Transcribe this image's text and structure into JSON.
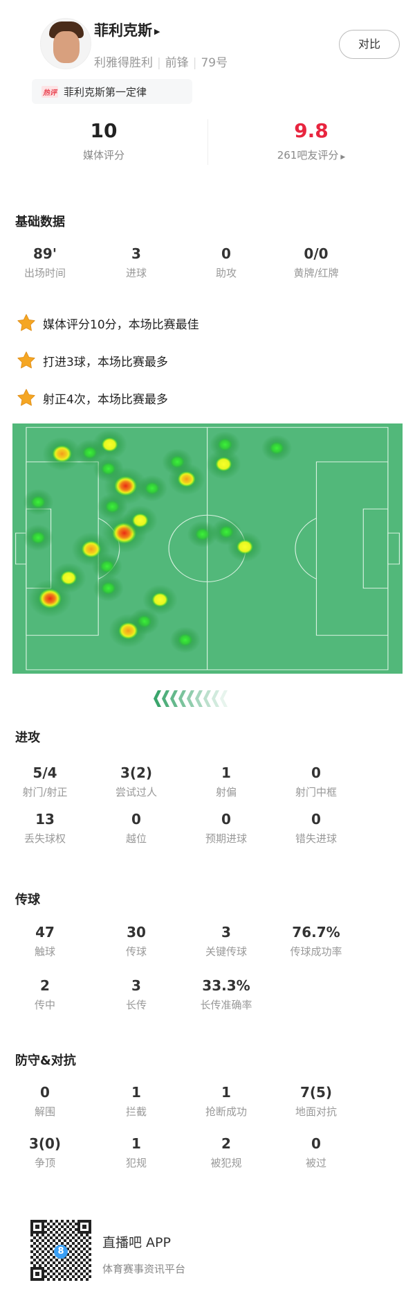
{
  "player": {
    "name": "菲利克斯",
    "team": "利雅得胜利",
    "position": "前锋",
    "number": "79号",
    "compare_label": "对比"
  },
  "hot_comment": {
    "tag": "热评",
    "text": "菲利克斯第一定律"
  },
  "ratings": {
    "media_score": "10",
    "media_label": "媒体评分",
    "fan_score": "9.8",
    "fan_label": "261吧友评分",
    "fan_score_color": "#e8253f"
  },
  "basic": {
    "title": "基础数据",
    "stats": [
      {
        "value": "89'",
        "label": "出场时间"
      },
      {
        "value": "3",
        "label": "进球"
      },
      {
        "value": "0",
        "label": "助攻"
      },
      {
        "value": "0/0",
        "label": "黄牌/红牌"
      }
    ]
  },
  "highlights": [
    "媒体评分10分，本场比赛最佳",
    "打进3球，本场比赛最多",
    "射正4次，本场比赛最多"
  ],
  "attack": {
    "title": "进攻",
    "stats": [
      {
        "value": "5/4",
        "label": "射门/射正"
      },
      {
        "value": "3(2)",
        "label": "尝试过人"
      },
      {
        "value": "1",
        "label": "射偏"
      },
      {
        "value": "0",
        "label": "射门中框"
      },
      {
        "value": "13",
        "label": "丢失球权"
      },
      {
        "value": "0",
        "label": "越位"
      },
      {
        "value": "0",
        "label": "预期进球"
      },
      {
        "value": "0",
        "label": "错失进球"
      }
    ]
  },
  "passing": {
    "title": "传球",
    "stats": [
      {
        "value": "47",
        "label": "触球"
      },
      {
        "value": "30",
        "label": "传球"
      },
      {
        "value": "3",
        "label": "关键传球"
      },
      {
        "value": "76.7%",
        "label": "传球成功率"
      },
      {
        "value": "2",
        "label": "传中"
      },
      {
        "value": "3",
        "label": "长传"
      },
      {
        "value": "33.3%",
        "label": "长传准确率"
      }
    ]
  },
  "defense": {
    "title": "防守&对抗",
    "stats": [
      {
        "value": "0",
        "label": "解围"
      },
      {
        "value": "1",
        "label": "拦截"
      },
      {
        "value": "1",
        "label": "抢断成功"
      },
      {
        "value": "7(5)",
        "label": "地面对抗"
      },
      {
        "value": "3(0)",
        "label": "争顶"
      },
      {
        "value": "1",
        "label": "犯规"
      },
      {
        "value": "2",
        "label": "被犯规"
      },
      {
        "value": "0",
        "label": "被过"
      }
    ]
  },
  "footer": {
    "app_name": "直播吧 APP",
    "tagline": "体育赛事资讯平台",
    "qr_badge": "8"
  },
  "colors": {
    "pitch": "#52b87a",
    "star": "#f5a623",
    "accent_red": "#e8253f"
  }
}
